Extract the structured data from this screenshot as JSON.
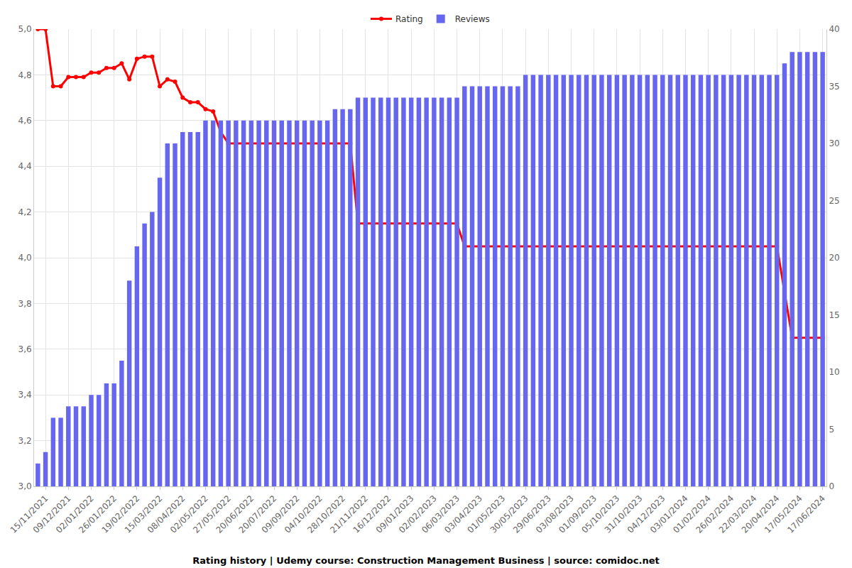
{
  "chart_data": {
    "type": "bar",
    "title": "Rating history | Udemy course: Construction Management Business | source: comidoc.net",
    "categories": [
      null,
      "15/11/2021",
      null,
      null,
      "09/12/2021",
      null,
      null,
      "02/01/2022",
      null,
      null,
      "26/01/2022",
      null,
      null,
      "19/02/2022",
      null,
      null,
      "15/03/2022",
      null,
      null,
      "08/04/2022",
      null,
      null,
      "02/05/2022",
      null,
      null,
      "27/05/2022",
      null,
      null,
      "20/06/2022",
      null,
      null,
      "20/07/2022",
      null,
      null,
      "09/09/2022",
      null,
      null,
      "04/10/2022",
      null,
      null,
      "28/10/2022",
      null,
      null,
      "21/11/2022",
      null,
      null,
      "16/12/2022",
      null,
      null,
      "09/01/2023",
      null,
      null,
      "02/02/2023",
      null,
      null,
      "06/03/2023",
      null,
      null,
      "03/04/2023",
      null,
      null,
      "01/05/2023",
      null,
      null,
      "30/05/2023",
      null,
      null,
      "29/06/2023",
      null,
      null,
      "03/08/2023",
      null,
      null,
      "01/09/2023",
      null,
      null,
      "05/10/2023",
      null,
      null,
      "31/10/2023",
      null,
      null,
      "04/12/2023",
      null,
      null,
      "03/01/2024",
      null,
      null,
      "01/02/2024",
      null,
      null,
      "26/02/2024",
      null,
      null,
      "22/03/2024",
      null,
      null,
      "20/04/2024",
      null,
      null,
      "17/05/2024",
      null,
      null,
      "17/06/2024"
    ],
    "series": [
      {
        "name": "Rating",
        "type": "line",
        "color": "#ff0000",
        "marker": "circle",
        "values": [
          5.0,
          5.0,
          4.75,
          4.75,
          4.79,
          4.79,
          4.79,
          4.81,
          4.81,
          4.83,
          4.83,
          4.85,
          4.78,
          4.87,
          4.88,
          4.88,
          4.75,
          4.78,
          4.77,
          4.7,
          4.68,
          4.68,
          4.65,
          4.64,
          4.55,
          4.5,
          4.5,
          4.5,
          4.5,
          4.5,
          4.5,
          4.5,
          4.5,
          4.5,
          4.5,
          4.5,
          4.5,
          4.5,
          4.5,
          4.5,
          4.5,
          4.5,
          4.15,
          4.15,
          4.15,
          4.15,
          4.15,
          4.15,
          4.15,
          4.15,
          4.15,
          4.15,
          4.15,
          4.15,
          4.15,
          4.15,
          4.05,
          4.05,
          4.05,
          4.05,
          4.05,
          4.05,
          4.05,
          4.05,
          4.05,
          4.05,
          4.05,
          4.05,
          4.05,
          4.05,
          4.05,
          4.05,
          4.05,
          4.05,
          4.05,
          4.05,
          4.05,
          4.05,
          4.05,
          4.05,
          4.05,
          4.05,
          4.05,
          4.05,
          4.05,
          4.05,
          4.05,
          4.05,
          4.05,
          4.05,
          4.05,
          4.05,
          4.05,
          4.05,
          4.05,
          4.05,
          4.05,
          4.05,
          3.85,
          3.65,
          3.65,
          3.65,
          3.65,
          3.65
        ]
      },
      {
        "name": "Reviews",
        "type": "bar",
        "color": "#6666ee",
        "axis": "y2",
        "values": [
          2,
          3,
          6,
          6,
          7,
          7,
          7,
          8,
          8,
          9,
          9,
          11,
          18,
          21,
          23,
          24,
          27,
          30,
          30,
          31,
          31,
          31,
          32,
          32,
          32,
          32,
          32,
          32,
          32,
          32,
          32,
          32,
          32,
          32,
          32,
          32,
          32,
          32,
          32,
          33,
          33,
          33,
          34,
          34,
          34,
          34,
          34,
          34,
          34,
          34,
          34,
          34,
          34,
          34,
          34,
          34,
          35,
          35,
          35,
          35,
          35,
          35,
          35,
          35,
          36,
          36,
          36,
          36,
          36,
          36,
          36,
          36,
          36,
          36,
          36,
          36,
          36,
          36,
          36,
          36,
          36,
          36,
          36,
          36,
          36,
          36,
          36,
          36,
          36,
          36,
          36,
          36,
          36,
          36,
          36,
          36,
          36,
          36,
          37,
          38,
          38,
          38,
          38,
          38
        ]
      }
    ],
    "ylim": [
      3,
      5
    ],
    "yticks": [
      {
        "value": 3,
        "label": "3,0"
      },
      {
        "value": 3.2,
        "label": "3,2"
      },
      {
        "value": 3.4,
        "label": "3,4"
      },
      {
        "value": 3.6,
        "label": "3,6"
      },
      {
        "value": 3.8,
        "label": "3,8"
      },
      {
        "value": 4,
        "label": "4,0"
      },
      {
        "value": 4.2,
        "label": "4,2"
      },
      {
        "value": 4.4,
        "label": "4,4"
      },
      {
        "value": 4.6,
        "label": "4,6"
      },
      {
        "value": 4.8,
        "label": "4,8"
      },
      {
        "value": 5,
        "label": "5,0"
      }
    ],
    "y2lim": [
      0,
      40
    ],
    "y2ticks": [
      0,
      5,
      10,
      15,
      20,
      25,
      30,
      35,
      40
    ],
    "grid": true,
    "legend": "top"
  }
}
